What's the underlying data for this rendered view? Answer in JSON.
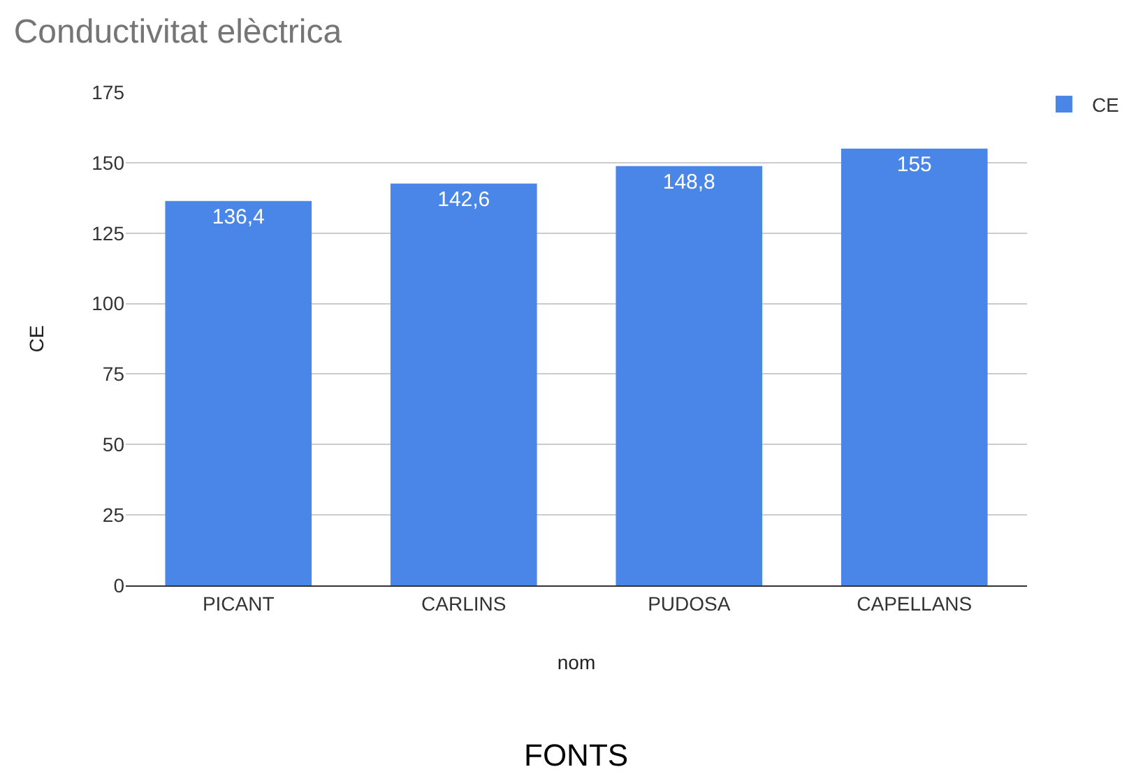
{
  "chart_data": {
    "type": "bar",
    "title": "Conductivitat elèctrica",
    "xlabel": "nom",
    "ylabel": "CE",
    "categories": [
      "PICANT",
      "CARLINS",
      "PUDOSA",
      "CAPELLANS"
    ],
    "series": [
      {
        "name": "CE",
        "color": "#4a86e8",
        "values": [
          136.4,
          142.6,
          148.8,
          155
        ],
        "value_labels": [
          "136,4",
          "142,6",
          "148,8",
          "155"
        ]
      }
    ],
    "ylim": [
      0,
      175
    ],
    "yticks": [
      0,
      25,
      50,
      75,
      100,
      125,
      150,
      175
    ],
    "grid": "y",
    "legend": "top right",
    "annotations": [
      "FONTS"
    ]
  }
}
